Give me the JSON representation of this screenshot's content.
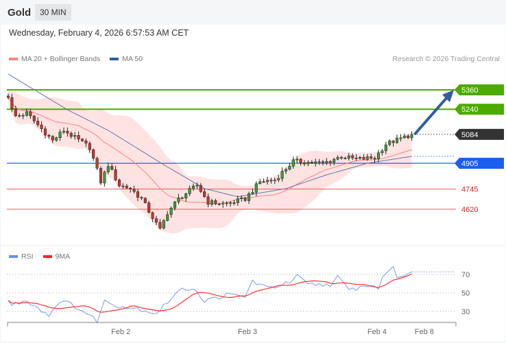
{
  "header": {
    "title": "Gold",
    "timeframe": "30 MIN"
  },
  "timestamp": "Wednesday, February 4, 2026 6:57:53 AM CET",
  "legend": {
    "ma20": {
      "label": "MA 20 + Bollinger Bands",
      "color": "#ff8080"
    },
    "ma50": {
      "label": "MA 50",
      "color": "#2d5fa0"
    }
  },
  "credit": "Research © 2026 Trading Central",
  "levels": [
    {
      "value": "5360",
      "price": 5360,
      "color": "#4caa00",
      "style": "tag"
    },
    {
      "value": "5240",
      "price": 5240,
      "color": "#4caa00",
      "style": "tag"
    },
    {
      "value": "5084",
      "price": 5084,
      "color": "#333333",
      "style": "current"
    },
    {
      "value": "4905",
      "price": 4905,
      "color": "#1a5ff0",
      "style": "tag"
    },
    {
      "value": "4745",
      "price": 4745,
      "color": "#f02020",
      "style": "text"
    },
    {
      "value": "4620",
      "price": 4620,
      "color": "#f02020",
      "style": "text"
    }
  ],
  "chart_data": [
    {
      "type": "candlestick",
      "title": "Gold 30 MIN",
      "candle_count": 110,
      "close_keypoints": [
        [
          0,
          5322
        ],
        [
          1.5,
          5194
        ],
        [
          5,
          5215
        ],
        [
          12,
          5045
        ],
        [
          15,
          5109
        ],
        [
          22,
          5003
        ],
        [
          25,
          4790
        ],
        [
          27,
          4896
        ],
        [
          30,
          4769
        ],
        [
          33,
          4748
        ],
        [
          36,
          4684
        ],
        [
          41,
          4492
        ],
        [
          43,
          4599
        ],
        [
          46,
          4684
        ],
        [
          51,
          4769
        ],
        [
          54,
          4663
        ],
        [
          59,
          4654
        ],
        [
          64,
          4684
        ],
        [
          68,
          4790
        ],
        [
          72,
          4803
        ],
        [
          77,
          4918
        ],
        [
          85,
          4905
        ],
        [
          90,
          4948
        ],
        [
          94,
          4930
        ],
        [
          99,
          4939
        ],
        [
          102,
          5024
        ],
        [
          109,
          5084
        ]
      ],
      "ma50_keypoints": [
        [
          0,
          5458
        ],
        [
          16,
          5237
        ],
        [
          27,
          5109
        ],
        [
          42,
          4896
        ],
        [
          53,
          4748
        ],
        [
          62,
          4697
        ],
        [
          75,
          4748
        ],
        [
          86,
          4833
        ],
        [
          97,
          4905
        ],
        [
          109,
          4948
        ]
      ],
      "forecast_target": 5360,
      "ylim": [
        4440,
        5480
      ]
    },
    {
      "type": "line",
      "title": "RSI",
      "series_legend": [
        {
          "name": "RSI",
          "color": "#6a8ff0"
        },
        {
          "name": "9MA",
          "color": "#ff2020"
        }
      ],
      "rsi_keypoints": [
        [
          0,
          41
        ],
        [
          1,
          37
        ],
        [
          5,
          42
        ],
        [
          11,
          26
        ],
        [
          14,
          42
        ],
        [
          18,
          36
        ],
        [
          24,
          20
        ],
        [
          26,
          41
        ],
        [
          30,
          36
        ],
        [
          35,
          33
        ],
        [
          40,
          28
        ],
        [
          46,
          52
        ],
        [
          50,
          56
        ],
        [
          53,
          41
        ],
        [
          59,
          48
        ],
        [
          64,
          46
        ],
        [
          66,
          63
        ],
        [
          70,
          55
        ],
        [
          76,
          61
        ],
        [
          78,
          68
        ],
        [
          81,
          59
        ],
        [
          87,
          59
        ],
        [
          89,
          67
        ],
        [
          92,
          53
        ],
        [
          98,
          59
        ],
        [
          100,
          55
        ],
        [
          102,
          73
        ],
        [
          104,
          77
        ],
        [
          105,
          67
        ],
        [
          109,
          73
        ]
      ],
      "yticks": [
        {
          "label": "70",
          "v": 70
        },
        {
          "label": "50",
          "v": 50
        },
        {
          "label": "30",
          "v": 30
        }
      ],
      "ylim": [
        15,
        85
      ]
    }
  ],
  "xaxis": [
    {
      "label": "Feb 2",
      "idx": 30.4
    },
    {
      "label": "Feb 3",
      "idx": 64.6
    },
    {
      "label": "Feb 4",
      "idx": 99.6
    },
    {
      "label": "Feb 8",
      "idx": 112
    }
  ]
}
